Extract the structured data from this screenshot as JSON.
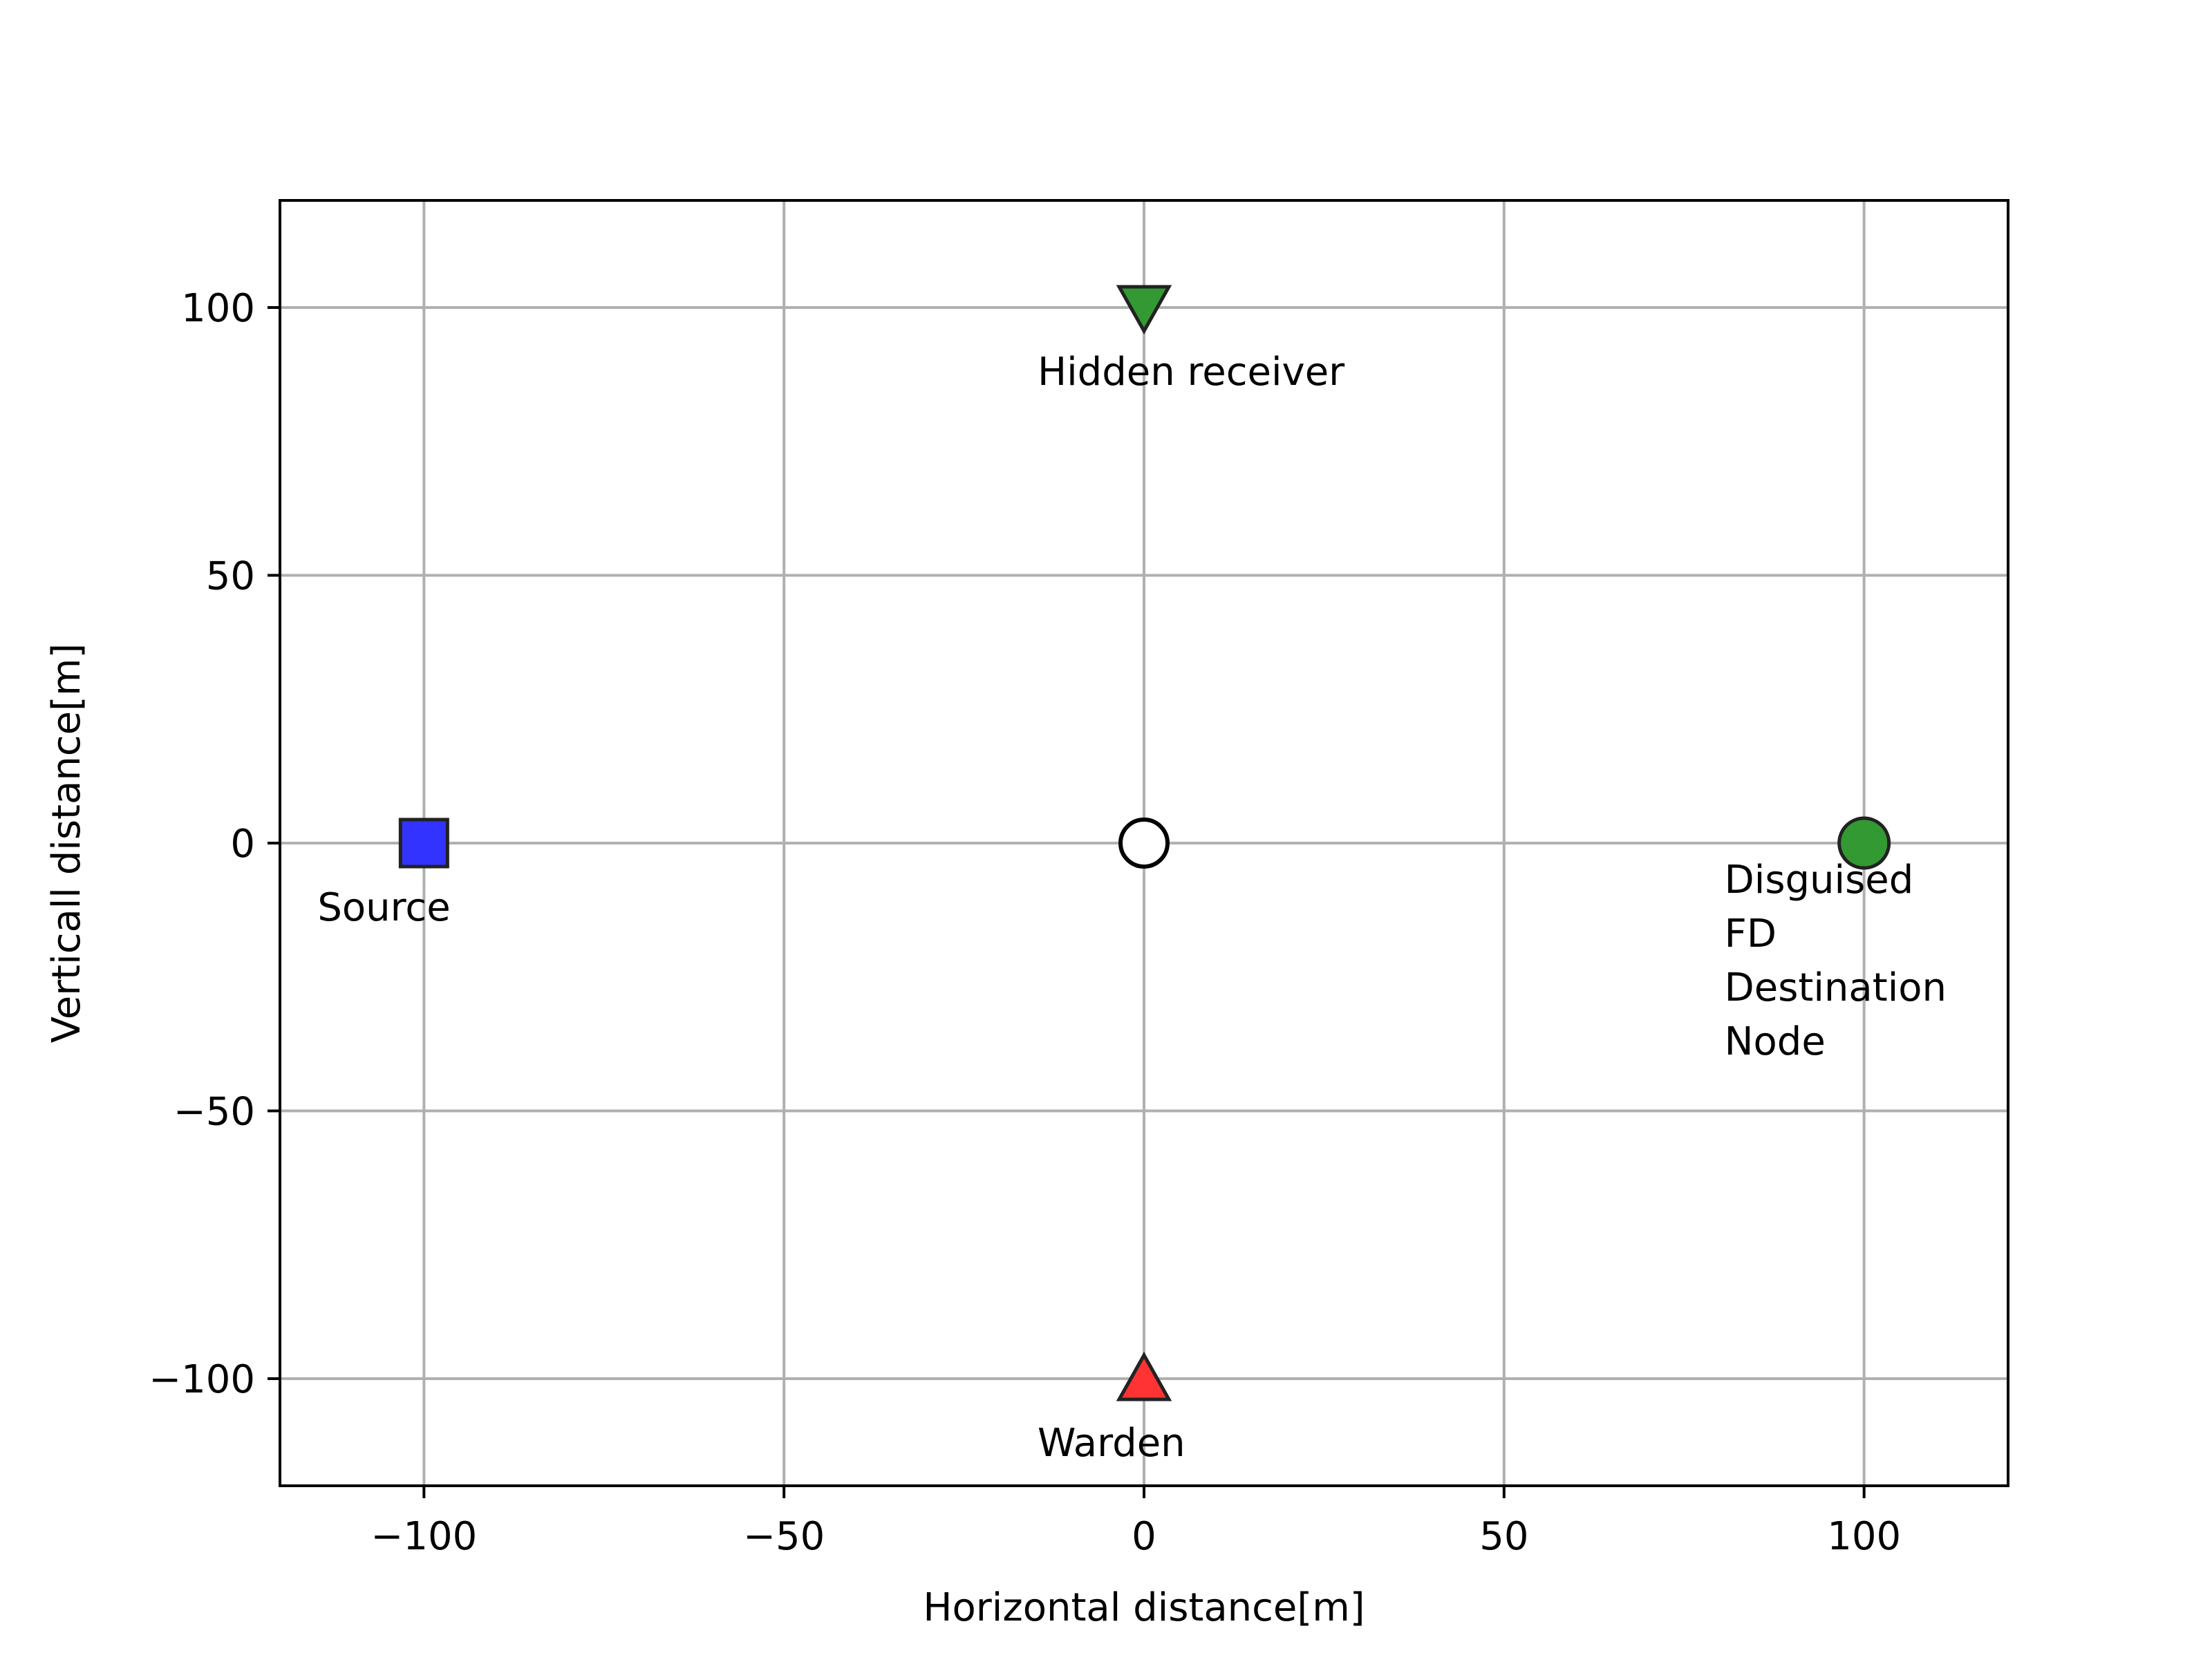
{
  "chart_data": {
    "type": "scatter",
    "title": "",
    "xlabel": "Horizontal distance[m]",
    "ylabel": "Verticall distance[m]",
    "xlim": [
      -120,
      120
    ],
    "ylim": [
      -120,
      120
    ],
    "xticks": [
      -100,
      -50,
      0,
      50,
      100
    ],
    "yticks": [
      -100,
      -50,
      0,
      50,
      100
    ],
    "xtick_labels": [
      "−100",
      "−50",
      "0",
      "50",
      "100"
    ],
    "ytick_labels": [
      "−100",
      "−50",
      "0",
      "50",
      "100"
    ],
    "grid": true,
    "legend": null,
    "points": [
      {
        "label": "Source",
        "x": -100,
        "y": 0,
        "marker": "square",
        "color": "#3333ff"
      },
      {
        "label": "Hidden receiver",
        "x": 0,
        "y": 100,
        "marker": "triangle-down",
        "color": "#339933"
      },
      {
        "label": "Warden",
        "x": 0,
        "y": -100,
        "marker": "triangle-up",
        "color": "#ff3333"
      },
      {
        "label": "Disguised\nFD\nDestination\nNode",
        "x": 100,
        "y": 0,
        "marker": "circle",
        "color": "#339933"
      },
      {
        "label": "",
        "x": 0,
        "y": 0,
        "marker": "circle-open",
        "color": "#ffffff"
      }
    ],
    "grid_color": "#b0b0b0",
    "edge_color": "#222222"
  }
}
